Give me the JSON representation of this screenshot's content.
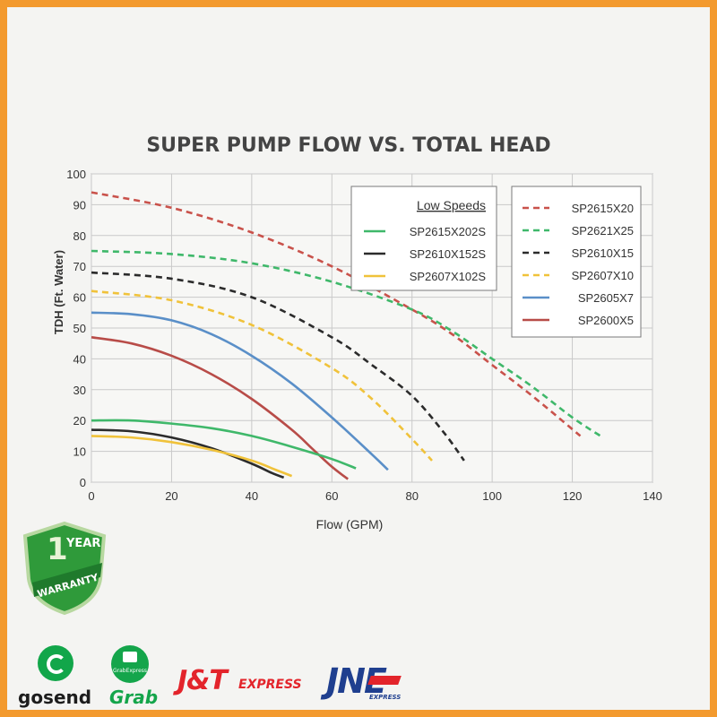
{
  "chart_data": {
    "type": "line",
    "title": "SUPER PUMP FLOW VS. TOTAL HEAD",
    "xlabel": "Flow (GPM)",
    "ylabel": "TDH (Ft. Water)",
    "xlim": [
      0,
      140
    ],
    "ylim": [
      0,
      100
    ],
    "x_ticks": [
      0,
      20,
      40,
      60,
      80,
      100,
      120,
      140
    ],
    "y_ticks": [
      0,
      10,
      20,
      30,
      40,
      50,
      60,
      70,
      80,
      90,
      100
    ],
    "grid": true,
    "legend_low": {
      "title": "Low Speeds",
      "placement": "top-center",
      "entries": [
        "SP2615X202S",
        "SP2610X152S",
        "SP2607X102S"
      ]
    },
    "legend_main": {
      "placement": "top-right",
      "entries": [
        "SP2615X20",
        "SP2621X25",
        "SP2610X15",
        "SP2607X10",
        "SP2605X7",
        "SP2600X5"
      ]
    },
    "series": [
      {
        "name": "SP2615X20",
        "color": "#c9524b",
        "dashed": true,
        "x": [
          0,
          20,
          40,
          60,
          80,
          90,
          100,
          110,
          122
        ],
        "y": [
          94,
          89,
          81,
          70,
          56,
          48,
          38,
          28,
          15
        ]
      },
      {
        "name": "SP2621X25",
        "color": "#3fb86a",
        "dashed": true,
        "x": [
          0,
          20,
          40,
          60,
          80,
          90,
          100,
          110,
          120,
          127
        ],
        "y": [
          75,
          74,
          71,
          65,
          56,
          49,
          40,
          31,
          21,
          15
        ]
      },
      {
        "name": "SP2610X15",
        "color": "#2b2b2b",
        "dashed": true,
        "x": [
          0,
          20,
          40,
          60,
          70,
          80,
          88,
          93
        ],
        "y": [
          68,
          66,
          60,
          47,
          38,
          28,
          16,
          7
        ]
      },
      {
        "name": "SP2607X10",
        "color": "#f0c23a",
        "dashed": true,
        "x": [
          0,
          20,
          40,
          60,
          70,
          80,
          85
        ],
        "y": [
          62,
          59,
          51,
          37,
          27,
          14,
          7
        ]
      },
      {
        "name": "SP2605X7",
        "color": "#5a8fc8",
        "dashed": false,
        "x": [
          0,
          10,
          20,
          30,
          40,
          50,
          60,
          70,
          74
        ],
        "y": [
          55,
          54.5,
          52.5,
          48,
          41,
          32,
          21,
          9,
          4
        ]
      },
      {
        "name": "SP2600X5",
        "color": "#b84c48",
        "dashed": false,
        "x": [
          0,
          10,
          20,
          30,
          40,
          50,
          55,
          60,
          64
        ],
        "y": [
          47,
          45,
          41,
          35,
          27,
          17,
          11,
          5,
          1
        ]
      },
      {
        "name": "SP2615X202S",
        "color": "#3fb86a",
        "dashed": false,
        "x": [
          0,
          10,
          20,
          30,
          40,
          50,
          60,
          66
        ],
        "y": [
          20,
          20,
          19,
          17.5,
          15,
          11.5,
          7.5,
          4.5
        ]
      },
      {
        "name": "SP2610X152S",
        "color": "#2b2b2b",
        "dashed": false,
        "x": [
          0,
          10,
          20,
          30,
          40,
          45,
          48
        ],
        "y": [
          17,
          16.5,
          14.5,
          11,
          6,
          3,
          1.5
        ]
      },
      {
        "name": "SP2607X102S",
        "color": "#f0c23a",
        "dashed": false,
        "x": [
          0,
          10,
          20,
          30,
          40,
          46,
          50
        ],
        "y": [
          15,
          14.5,
          13,
          10.5,
          7,
          4,
          2
        ]
      }
    ]
  },
  "warranty": {
    "text_year": "YEAR",
    "text_number": "1",
    "text_warranty": "WARRANTY"
  },
  "couriers": {
    "gosend": "gosend",
    "grab": "Grab",
    "grab_express": "GrabExpress",
    "jnt": "J&T",
    "jnt_suffix": "EXPRESS",
    "jne": "JNE",
    "jne_suffix": "EXPRESS"
  }
}
